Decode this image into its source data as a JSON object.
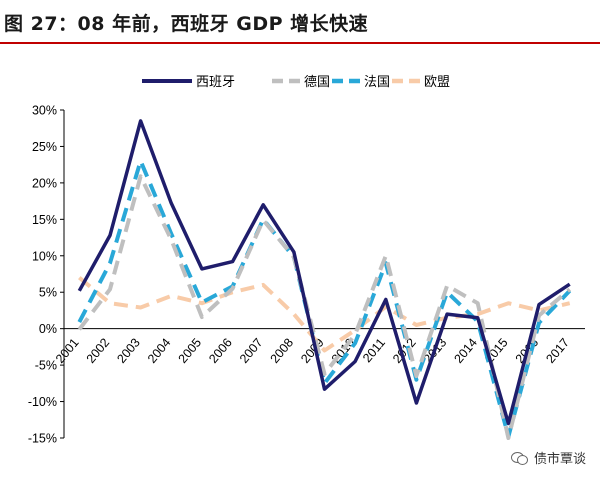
{
  "header": {
    "title": "图 27：08 年前，西班牙 GDP 增长快速"
  },
  "watermark": {
    "text": "债市覃谈"
  },
  "chart_data": {
    "type": "line",
    "title": "图 27：08 年前，西班牙 GDP 增长快速",
    "xlabel": "",
    "ylabel": "",
    "categories": [
      "2001",
      "2002",
      "2003",
      "2004",
      "2005",
      "2006",
      "2007",
      "2008",
      "2009",
      "2010",
      "2011",
      "2012",
      "2013",
      "2014",
      "2015",
      "2016",
      "2017"
    ],
    "ylim": [
      -15,
      30
    ],
    "yticks": [
      -15,
      -10,
      -5,
      0,
      5,
      10,
      15,
      20,
      25,
      30
    ],
    "ytick_labels": [
      "-15%",
      "-10%",
      "-5%",
      "0%",
      "5%",
      "10%",
      "15%",
      "20%",
      "25%",
      "30%"
    ],
    "legend_position": "top-right",
    "grid": false,
    "series": [
      {
        "name": "西班牙",
        "color": "#1f1d6b",
        "dash": "solid",
        "values": [
          5.2,
          12.8,
          28.5,
          17.2,
          8.2,
          9.2,
          17.0,
          10.5,
          -8.3,
          -4.5,
          4.0,
          -10.2,
          2.0,
          1.5,
          -13.0,
          3.3,
          6.1
        ]
      },
      {
        "name": "德国",
        "color": "#bfbfbf",
        "dash": "dashed",
        "values": [
          -0.1,
          5.4,
          20.9,
          12.2,
          1.6,
          5.5,
          14.9,
          9.8,
          -6.2,
          -0.8,
          10.0,
          -6.5,
          5.9,
          3.5,
          -15.0,
          1.8,
          5.4
        ]
      },
      {
        "name": "法国",
        "color": "#29a8d8",
        "dash": "dashed",
        "values": [
          0.9,
          9.0,
          23.0,
          13.0,
          3.6,
          5.8,
          15.0,
          9.8,
          -7.5,
          -2.0,
          9.0,
          -7.0,
          5.0,
          1.0,
          -14.8,
          0.8,
          5.2
        ]
      },
      {
        "name": "欧盟",
        "color": "#f8cba8",
        "dash": "dashed",
        "values": [
          7.0,
          3.5,
          2.9,
          4.5,
          3.5,
          5.0,
          6.0,
          2.0,
          -3.0,
          -0.2,
          3.0,
          0.5,
          1.5,
          2.0,
          3.5,
          2.5,
          3.5
        ]
      }
    ]
  }
}
